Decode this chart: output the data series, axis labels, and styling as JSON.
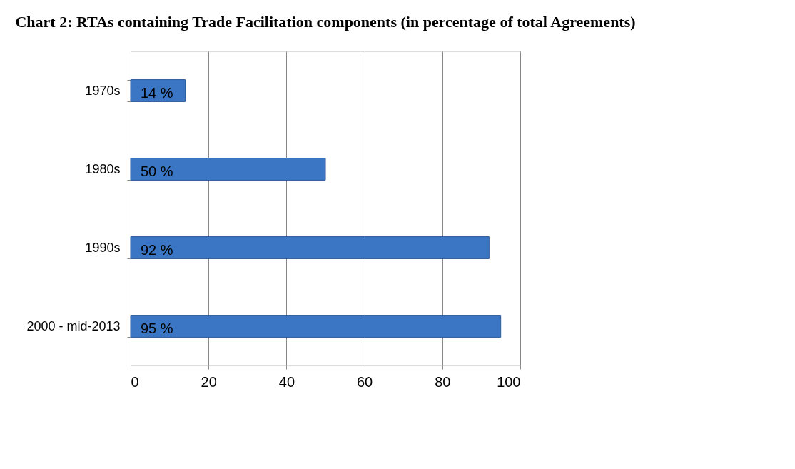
{
  "chart_data": {
    "type": "bar",
    "orientation": "horizontal",
    "title": "Chart 2: RTAs containing Trade Facilitation components (in percentage of total Agreements)",
    "categories": [
      "1970s",
      "1980s",
      "1990s",
      "2000 - mid-2013"
    ],
    "values": [
      14,
      50,
      92,
      95
    ],
    "value_labels": [
      "14 %",
      "50 %",
      "92 %",
      "95 %"
    ],
    "color": "#3b76c4",
    "xlim": [
      0,
      100
    ],
    "xticks": [
      0,
      20,
      40,
      60,
      80,
      100
    ],
    "grid": "x"
  }
}
